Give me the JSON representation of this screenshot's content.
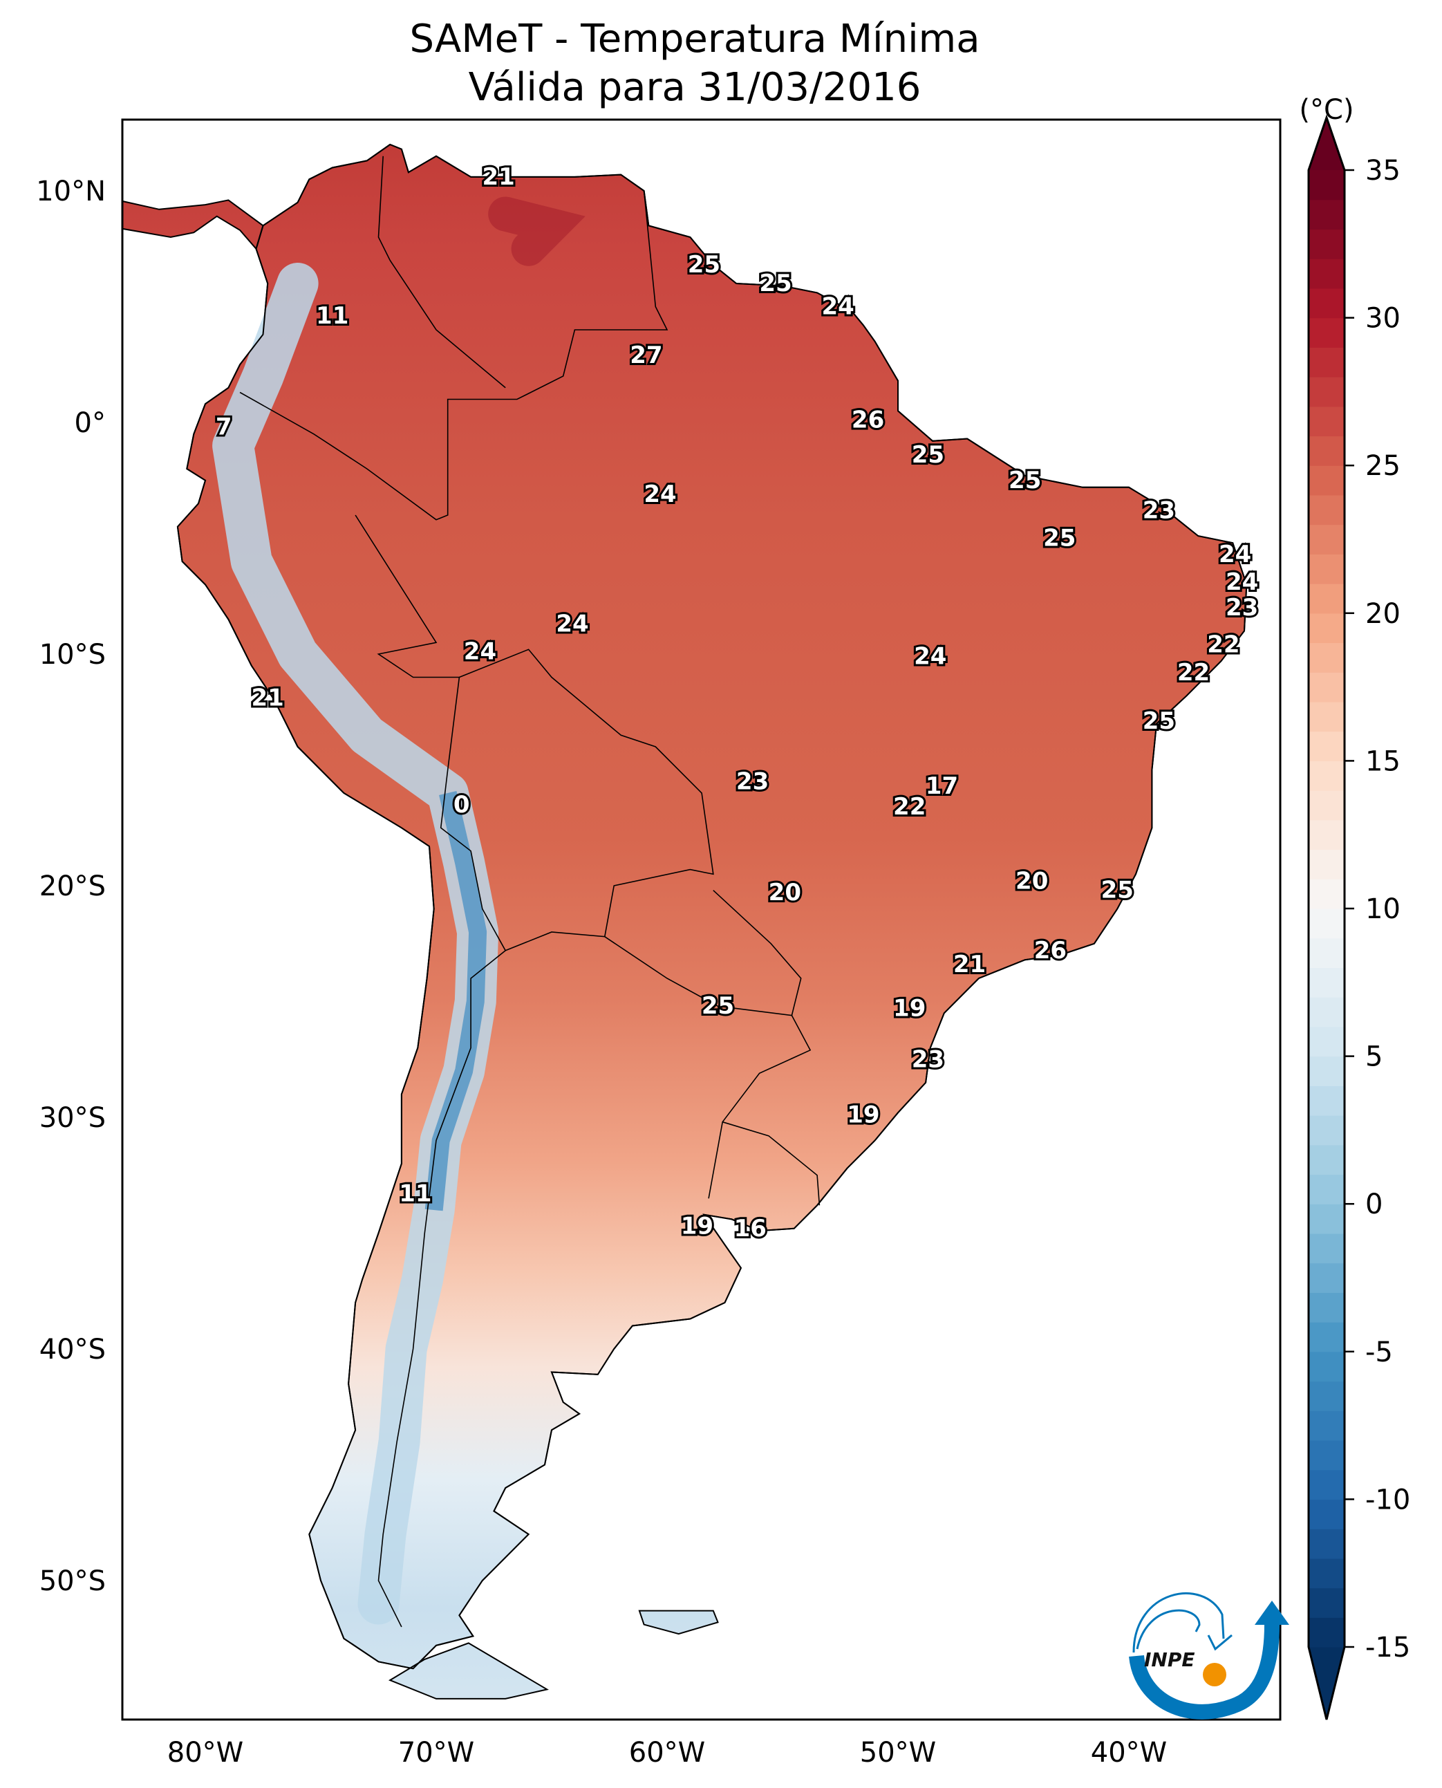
{
  "title": {
    "line1": "SAMeT - Temperatura Mínima",
    "line2": "Válida para 31/03/2016"
  },
  "colorbar": {
    "unit_label": "(°C)",
    "min": -15,
    "max": 35,
    "ticks": [
      "35",
      "30",
      "25",
      "20",
      "15",
      "10",
      "5",
      "0",
      "-5",
      "-10",
      "-15"
    ],
    "colormap": "RdBu_r",
    "extend": "both"
  },
  "axes": {
    "lat_ticks": [
      {
        "v": 10,
        "label": "10°N"
      },
      {
        "v": 0,
        "label": "0°"
      },
      {
        "v": -10,
        "label": "10°S"
      },
      {
        "v": -20,
        "label": "20°S"
      },
      {
        "v": -30,
        "label": "30°S"
      },
      {
        "v": -40,
        "label": "40°S"
      },
      {
        "v": -50,
        "label": "50°S"
      }
    ],
    "lon_ticks": [
      {
        "v": -80,
        "label": "80°W"
      },
      {
        "v": -70,
        "label": "70°W"
      },
      {
        "v": -60,
        "label": "60°W"
      },
      {
        "v": -50,
        "label": "50°W"
      },
      {
        "v": -40,
        "label": "40°W"
      }
    ],
    "lon_range": [
      -83.6,
      -33.4
    ],
    "lat_range": [
      -56,
      13.1
    ]
  },
  "station_values": [
    {
      "t": "21",
      "lon": -67.3,
      "lat": 10.6
    },
    {
      "t": "11",
      "lon": -74.5,
      "lat": 4.6
    },
    {
      "t": "25",
      "lon": -58.4,
      "lat": 6.8
    },
    {
      "t": "25",
      "lon": -55.3,
      "lat": 6.0
    },
    {
      "t": "24",
      "lon": -52.6,
      "lat": 5.0
    },
    {
      "t": "27",
      "lon": -60.9,
      "lat": 2.9
    },
    {
      "t": "7",
      "lon": -79.2,
      "lat": -0.2
    },
    {
      "t": "26",
      "lon": -51.3,
      "lat": 0.1
    },
    {
      "t": "25",
      "lon": -48.7,
      "lat": -1.4
    },
    {
      "t": "24",
      "lon": -60.3,
      "lat": -3.1
    },
    {
      "t": "25",
      "lon": -44.5,
      "lat": -2.5
    },
    {
      "t": "23",
      "lon": -38.7,
      "lat": -3.8
    },
    {
      "t": "25",
      "lon": -43.0,
      "lat": -5.0
    },
    {
      "t": "24",
      "lon": -35.4,
      "lat": -5.7
    },
    {
      "t": "24",
      "lon": -35.1,
      "lat": -6.9
    },
    {
      "t": "23",
      "lon": -35.1,
      "lat": -8.0
    },
    {
      "t": "24",
      "lon": -64.1,
      "lat": -8.7
    },
    {
      "t": "22",
      "lon": -35.9,
      "lat": -9.6
    },
    {
      "t": "24",
      "lon": -68.1,
      "lat": -9.9
    },
    {
      "t": "24",
      "lon": -48.6,
      "lat": -10.1
    },
    {
      "t": "21",
      "lon": -77.3,
      "lat": -11.9
    },
    {
      "t": "22",
      "lon": -37.2,
      "lat": -10.8
    },
    {
      "t": "25",
      "lon": -38.7,
      "lat": -12.9
    },
    {
      "t": "23",
      "lon": -56.3,
      "lat": -15.5
    },
    {
      "t": "17",
      "lon": -48.1,
      "lat": -15.7
    },
    {
      "t": "22",
      "lon": -49.5,
      "lat": -16.6
    },
    {
      "t": "0",
      "lon": -68.9,
      "lat": -16.5
    },
    {
      "t": "20",
      "lon": -44.2,
      "lat": -19.8
    },
    {
      "t": "25",
      "lon": -40.5,
      "lat": -20.2
    },
    {
      "t": "20",
      "lon": -54.9,
      "lat": -20.3
    },
    {
      "t": "26",
      "lon": -43.4,
      "lat": -22.8
    },
    {
      "t": "21",
      "lon": -46.9,
      "lat": -23.4
    },
    {
      "t": "25",
      "lon": -57.8,
      "lat": -25.2
    },
    {
      "t": "19",
      "lon": -49.5,
      "lat": -25.3
    },
    {
      "t": "23",
      "lon": -48.7,
      "lat": -27.5
    },
    {
      "t": "19",
      "lon": -51.5,
      "lat": -29.9
    },
    {
      "t": "11",
      "lon": -70.9,
      "lat": -33.3
    },
    {
      "t": "19",
      "lon": -58.7,
      "lat": -34.7
    },
    {
      "t": "16",
      "lon": -56.4,
      "lat": -34.8
    }
  ],
  "logo": {
    "text": "INPE",
    "blue": "#0277bb",
    "orange": "#f29200"
  }
}
